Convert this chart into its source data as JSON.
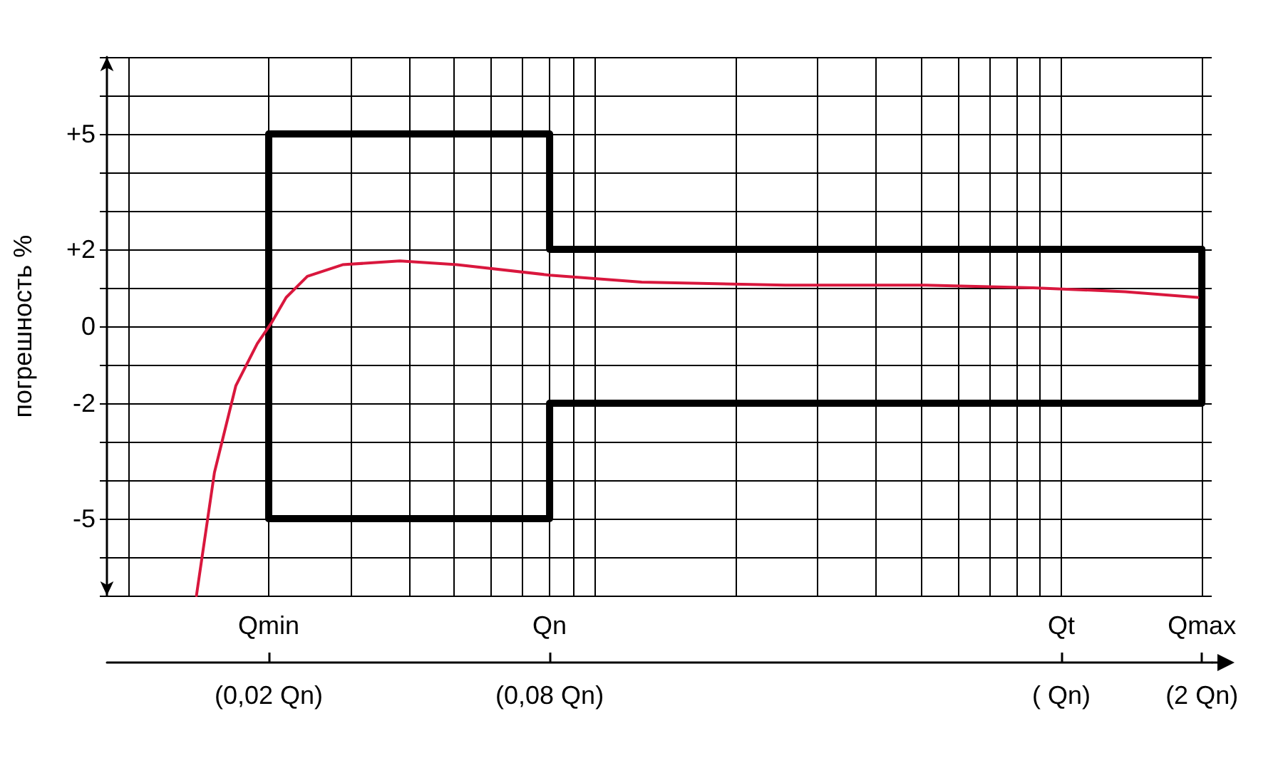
{
  "chart_data": {
    "type": "line",
    "ylabel": "погрешность %",
    "log": "x",
    "grid": true,
    "marker": "none",
    "line_style": "solid",
    "xlim": [
      0.009,
      2.1
    ],
    "ylim": [
      -7,
      7
    ],
    "xticks": [
      {
        "value": 0.01,
        "label": null
      },
      {
        "value": 0.02,
        "label": "(0,02 Qn)"
      },
      {
        "value": 0.03,
        "label": null
      },
      {
        "value": 0.04,
        "label": null
      },
      {
        "value": 0.05,
        "label": null
      },
      {
        "value": 0.06,
        "label": null
      },
      {
        "value": 0.07,
        "label": null
      },
      {
        "value": 0.08,
        "label": "(0,08 Qn)"
      },
      {
        "value": 0.09,
        "label": null
      },
      {
        "value": 0.1,
        "label": null
      },
      {
        "value": 0.2,
        "label": null
      },
      {
        "value": 0.3,
        "label": null
      },
      {
        "value": 0.4,
        "label": null
      },
      {
        "value": 0.5,
        "label": null
      },
      {
        "value": 0.6,
        "label": null
      },
      {
        "value": 0.7,
        "label": null
      },
      {
        "value": 0.8,
        "label": null
      },
      {
        "value": 0.9,
        "label": null
      },
      {
        "value": 1,
        "label": "( Qn)"
      },
      {
        "value": 2,
        "label": "(2 Qn)"
      }
    ],
    "annotations": [
      "Qmin",
      "Qn",
      "Qt",
      "Qmax"
    ],
    "yticks": [
      {
        "value": -7,
        "label": null
      },
      {
        "value": -6,
        "label": null
      },
      -5,
      {
        "value": -4,
        "label": null
      },
      {
        "value": -3,
        "label": null
      },
      -2,
      {
        "value": -1,
        "label": null
      },
      0,
      {
        "value": 1,
        "label": null
      },
      {
        "value": 2,
        "label": "+2"
      },
      {
        "value": 3,
        "label": null
      },
      {
        "value": 4,
        "label": null
      },
      {
        "value": 5,
        "label": "+5"
      },
      {
        "value": 6,
        "label": null
      },
      {
        "value": 7,
        "label": null
      }
    ],
    "series": [
      {
        "color": "#000000",
        "x": [
          0.02,
          0.02,
          0.08,
          0.08,
          2
        ],
        "values": [
          -5,
          5,
          5,
          2,
          2
        ]
      },
      {
        "color": "#000000",
        "x": [
          0.02,
          0.08,
          0.08,
          2,
          2
        ],
        "values": [
          -5,
          -5,
          -2,
          -2,
          2
        ]
      },
      {
        "color": "#d9173d",
        "x": [
          0.014,
          0.0153,
          0.017,
          0.0189,
          0.0203,
          0.0218,
          0.0242,
          0.0288,
          0.0382,
          0.0506,
          0.08,
          0.126,
          0.256,
          0.51,
          0.87,
          1.37,
          1.96
        ],
        "values": [
          -7,
          -3.8,
          -1.55,
          -0.45,
          0.1,
          0.75,
          1.3,
          1.6,
          1.7,
          1.6,
          1.33,
          1.15,
          1.07,
          1.07,
          1.0,
          0.9,
          0.75
        ]
      }
    ]
  }
}
